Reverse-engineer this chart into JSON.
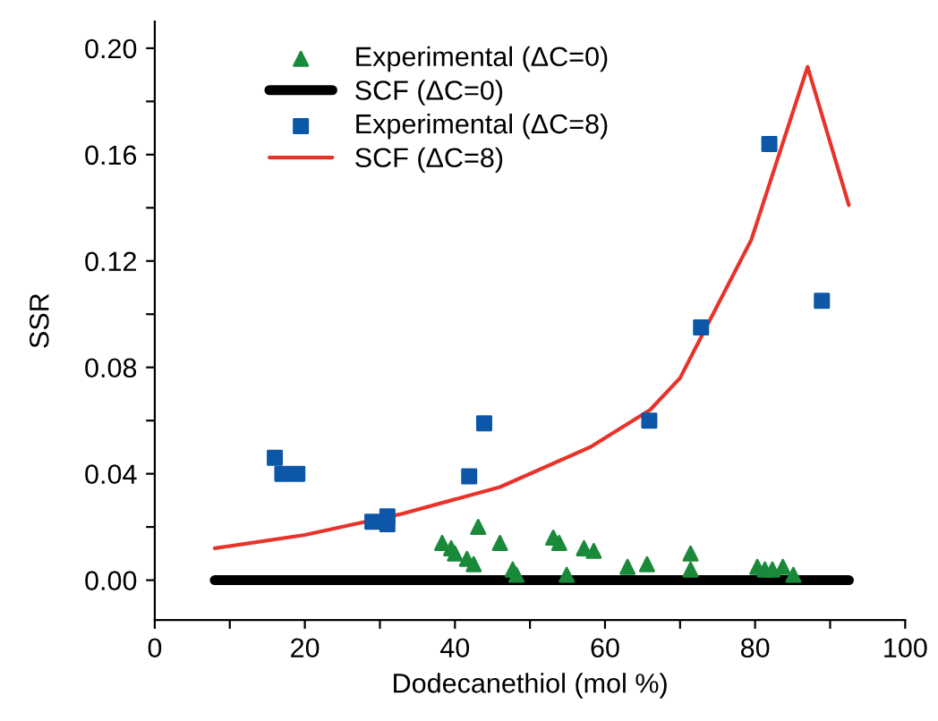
{
  "chart_data": {
    "type": "scatter",
    "xlabel": "Dodecanethiol (mol %)",
    "ylabel": "SSR",
    "xlim": [
      0,
      100
    ],
    "ylim": [
      -0.015,
      0.21
    ],
    "xticks": [
      0,
      {
        "value": 10,
        "label": null
      },
      20,
      {
        "value": 30,
        "label": null
      },
      40,
      {
        "value": 50,
        "label": null
      },
      60,
      {
        "value": 70,
        "label": null
      },
      80,
      {
        "value": 90,
        "label": null
      },
      100
    ],
    "yticks": [
      {
        "value": 0,
        "label": "0.00"
      },
      {
        "value": 0.02,
        "label": null
      },
      {
        "value": 0.04,
        "label": "0.04"
      },
      {
        "value": 0.06,
        "label": null
      },
      {
        "value": 0.08,
        "label": "0.08"
      },
      {
        "value": 0.1,
        "label": null
      },
      {
        "value": 0.12,
        "label": "0.12"
      },
      {
        "value": 0.14,
        "label": null
      },
      {
        "value": 0.16,
        "label": "0.16"
      },
      {
        "value": 0.18,
        "label": null
      },
      {
        "value": 0.2,
        "label": "0.20"
      }
    ],
    "grid": false,
    "legend": "top left",
    "series": [
      {
        "name": "Experimental (ΔC=0)",
        "marker": "triangle",
        "color": "#1a8a3a",
        "x": [
          38.3,
          39.5,
          40.0,
          41.6,
          42.5,
          43.1,
          46.0,
          47.7,
          48.2,
          53.1,
          53.9,
          54.9,
          57.2,
          58.5,
          63.0,
          65.6,
          71.4,
          71.4,
          80.3,
          81.3,
          82.3,
          83.7,
          85.1
        ],
        "values": [
          0.014,
          0.012,
          0.01,
          0.008,
          0.006,
          0.02,
          0.014,
          0.004,
          0.002,
          0.016,
          0.014,
          0.002,
          0.012,
          0.011,
          0.005,
          0.006,
          0.01,
          0.004,
          0.005,
          0.004,
          0.004,
          0.005,
          0.002
        ]
      },
      {
        "name": "SCF (ΔC=0)",
        "type": "line",
        "marker": "none",
        "color": "#000000",
        "x": [
          8,
          92.5
        ],
        "values": [
          0,
          0
        ]
      },
      {
        "name": "Experimental (ΔC=8)",
        "marker": "square",
        "color": "#0d57a8",
        "x": [
          16.0,
          17.0,
          19.0,
          29.0,
          31.0,
          31.0,
          41.9,
          43.9,
          65.9,
          72.8,
          81.9,
          88.9
        ],
        "values": [
          0.046,
          0.04,
          0.04,
          0.022,
          0.024,
          0.021,
          0.039,
          0.059,
          0.06,
          0.095,
          0.164,
          0.105
        ]
      },
      {
        "name": "SCF (ΔC=8)",
        "type": "line",
        "marker": "none",
        "color": "#e8332a",
        "x": [
          8,
          20,
          33,
          46,
          58,
          66,
          70,
          79.5,
          87,
          92.5
        ],
        "values": [
          0.012,
          0.017,
          0.025,
          0.035,
          0.05,
          0.064,
          0.076,
          0.128,
          0.193,
          0.141
        ]
      }
    ]
  }
}
